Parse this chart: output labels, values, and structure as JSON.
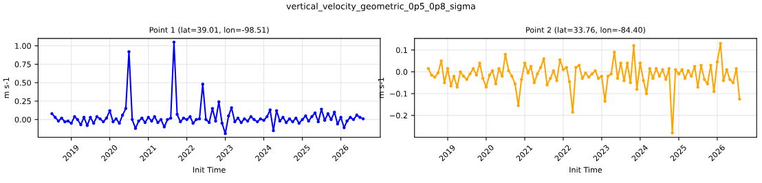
{
  "chart_data": [
    {
      "type": "line",
      "title": "Point 1 (lat=39.01, lon=-98.51)",
      "annotations": [
        "vertical_velocity_geometric_0p5_0p8_sigma"
      ],
      "xlabel": "Init Time",
      "ylabel": "m s-1",
      "grid": true,
      "marker": "circle",
      "line_style": "solid",
      "x": [
        "2018-07",
        "2018-08",
        "2018-09",
        "2018-10",
        "2018-11",
        "2018-12",
        "2019-01",
        "2019-02",
        "2019-03",
        "2019-04",
        "2019-05",
        "2019-06",
        "2019-07",
        "2019-08",
        "2019-09",
        "2019-10",
        "2019-11",
        "2019-12",
        "2020-01",
        "2020-02",
        "2020-03",
        "2020-04",
        "2020-05",
        "2020-06",
        "2020-07",
        "2020-08",
        "2020-09",
        "2020-10",
        "2020-11",
        "2020-12",
        "2021-01",
        "2021-02",
        "2021-03",
        "2021-04",
        "2021-05",
        "2021-06",
        "2021-07",
        "2021-08",
        "2021-09",
        "2021-10",
        "2021-11",
        "2021-12",
        "2022-01",
        "2022-02",
        "2022-03",
        "2022-04",
        "2022-05",
        "2022-06",
        "2022-07",
        "2022-08",
        "2022-09",
        "2022-10",
        "2022-11",
        "2022-12",
        "2023-01",
        "2023-02",
        "2023-03",
        "2023-04",
        "2023-05",
        "2023-06",
        "2023-07",
        "2023-08",
        "2023-09",
        "2023-10",
        "2023-11",
        "2023-12",
        "2024-01",
        "2024-02",
        "2024-03",
        "2024-04",
        "2024-05",
        "2024-06",
        "2024-07",
        "2024-08",
        "2024-09",
        "2024-10",
        "2024-11",
        "2024-12",
        "2025-01",
        "2025-02",
        "2025-03",
        "2025-04",
        "2025-05",
        "2025-06",
        "2025-07",
        "2025-08",
        "2025-09",
        "2025-10",
        "2025-11",
        "2025-12",
        "2026-01",
        "2026-02",
        "2026-03",
        "2026-04",
        "2026-05",
        "2026-06",
        "2026-07",
        "2026-08"
      ],
      "series": [
        {
          "color": "#0000ff",
          "values": [
            0.08,
            0.03,
            -0.02,
            0.02,
            -0.03,
            -0.02,
            -0.05,
            0.04,
            0.0,
            -0.07,
            0.03,
            -0.08,
            0.03,
            -0.05,
            0.04,
            0.01,
            -0.03,
            0.02,
            0.12,
            -0.03,
            0.01,
            -0.05,
            0.06,
            0.15,
            0.92,
            0.0,
            -0.12,
            -0.02,
            0.02,
            -0.04,
            0.03,
            -0.02,
            0.04,
            -0.04,
            0.0,
            -0.1,
            0.0,
            0.02,
            1.05,
            0.07,
            -0.03,
            0.02,
            0.0,
            0.04,
            -0.05,
            0.0,
            0.01,
            0.48,
            0.0,
            -0.04,
            0.15,
            -0.02,
            0.24,
            -0.05,
            -0.19,
            0.05,
            0.16,
            -0.03,
            0.02,
            -0.04,
            0.01,
            -0.02,
            0.04,
            0.0,
            -0.03,
            0.01,
            -0.01,
            0.04,
            0.13,
            -0.15,
            0.12,
            -0.02,
            0.03,
            -0.04,
            0.01,
            -0.03,
            0.02,
            -0.05,
            0.0,
            0.05,
            -0.02,
            0.04,
            0.09,
            -0.03,
            0.14,
            -0.01,
            0.08,
            0.0,
            0.1,
            -0.06,
            0.03,
            -0.11,
            -0.02,
            0.03,
            0.0,
            0.06,
            0.03,
            0.01
          ]
        }
      ],
      "xlim": [
        "2018-02-20",
        "2027-01-10"
      ],
      "xticks": [
        "2019",
        "2020",
        "2021",
        "2022",
        "2023",
        "2024",
        "2025",
        "2026"
      ],
      "ylim": [
        -0.24,
        1.1
      ],
      "yticks": [
        {
          "value": 0,
          "label": "0.00"
        },
        {
          "value": 0.25,
          "label": "0.25"
        },
        {
          "value": 0.5,
          "label": "0.50"
        },
        {
          "value": 0.75,
          "label": "0.75"
        },
        {
          "value": 1,
          "label": "1.00"
        }
      ]
    },
    {
      "type": "line",
      "title": "Point 2 (lat=33.76, lon=-84.40)",
      "xlabel": "Init Time",
      "ylabel": "m s-1",
      "grid": true,
      "marker": "circle",
      "line_style": "solid",
      "x": [
        "2018-07",
        "2018-08",
        "2018-09",
        "2018-10",
        "2018-11",
        "2018-12",
        "2019-01",
        "2019-02",
        "2019-03",
        "2019-04",
        "2019-05",
        "2019-06",
        "2019-07",
        "2019-08",
        "2019-09",
        "2019-10",
        "2019-11",
        "2019-12",
        "2020-01",
        "2020-02",
        "2020-03",
        "2020-04",
        "2020-05",
        "2020-06",
        "2020-07",
        "2020-08",
        "2020-09",
        "2020-10",
        "2020-11",
        "2020-12",
        "2021-01",
        "2021-02",
        "2021-03",
        "2021-04",
        "2021-05",
        "2021-06",
        "2021-07",
        "2021-08",
        "2021-09",
        "2021-10",
        "2021-11",
        "2021-12",
        "2022-01",
        "2022-02",
        "2022-03",
        "2022-04",
        "2022-05",
        "2022-06",
        "2022-07",
        "2022-08",
        "2022-09",
        "2022-10",
        "2022-11",
        "2022-12",
        "2023-01",
        "2023-02",
        "2023-03",
        "2023-04",
        "2023-05",
        "2023-06",
        "2023-07",
        "2023-08",
        "2023-09",
        "2023-10",
        "2023-11",
        "2023-12",
        "2024-01",
        "2024-02",
        "2024-03",
        "2024-04",
        "2024-05",
        "2024-06",
        "2024-07",
        "2024-08",
        "2024-09",
        "2024-10",
        "2024-11",
        "2024-12",
        "2025-01",
        "2025-02",
        "2025-03",
        "2025-04",
        "2025-05",
        "2025-06",
        "2025-07",
        "2025-08",
        "2025-09",
        "2025-10",
        "2025-11",
        "2025-12",
        "2026-01",
        "2026-02",
        "2026-03",
        "2026-04",
        "2026-05",
        "2026-06",
        "2026-07",
        "2026-08"
      ],
      "series": [
        {
          "color": "#ffa500",
          "values": [
            0.015,
            -0.015,
            -0.025,
            -0.005,
            0.05,
            -0.05,
            0.015,
            -0.065,
            -0.02,
            -0.07,
            0.0,
            -0.02,
            -0.035,
            -0.01,
            0.015,
            -0.015,
            0.04,
            -0.03,
            -0.07,
            -0.015,
            0.005,
            -0.055,
            0.015,
            -0.02,
            0.08,
            0.005,
            -0.02,
            -0.055,
            -0.155,
            -0.035,
            0.04,
            -0.005,
            0.025,
            -0.05,
            -0.01,
            0.02,
            0.06,
            -0.06,
            -0.03,
            0.005,
            -0.04,
            0.055,
            0.01,
            0.02,
            -0.045,
            -0.185,
            0.02,
            0.03,
            -0.03,
            -0.005,
            -0.025,
            -0.01,
            0.005,
            -0.03,
            -0.02,
            -0.135,
            -0.02,
            -0.01,
            0.09,
            -0.03,
            0.04,
            -0.04,
            0.04,
            -0.05,
            0.12,
            -0.08,
            0.04,
            -0.04,
            -0.1,
            0.015,
            -0.03,
            0.015,
            -0.02,
            0.01,
            -0.035,
            0.015,
            -0.28,
            0.01,
            -0.01,
            0.01,
            -0.03,
            0.005,
            -0.02,
            0.025,
            -0.07,
            0.03,
            -0.035,
            -0.055,
            0.03,
            -0.09,
            0.045,
            0.13,
            -0.04,
            0.01,
            -0.035,
            -0.05,
            0.015,
            -0.125
          ]
        }
      ],
      "xlim": [
        "2018-02-20",
        "2027-01-10"
      ],
      "xticks": [
        "2019",
        "2020",
        "2021",
        "2022",
        "2023",
        "2024",
        "2025",
        "2026"
      ],
      "ylim": [
        -0.3,
        0.153
      ],
      "yticks": [
        {
          "value": -0.2,
          "label": "−0.2"
        },
        {
          "value": -0.1,
          "label": "−0.1"
        },
        {
          "value": 0,
          "label": "0.0"
        },
        {
          "value": 0.1,
          "label": "0.1"
        }
      ]
    }
  ]
}
